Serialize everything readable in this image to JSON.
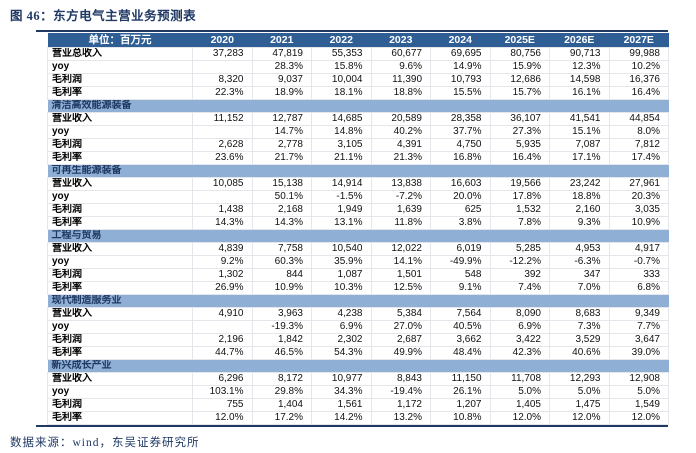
{
  "title": "图 46：东方电气主营业务预测表",
  "footer": "数据来源：wind，东吴证券研究所",
  "colors": {
    "navy": "#1F3864",
    "header_bg": "#2F5E94",
    "section_bg": "#8FAFD4",
    "grid": "#E3E6EA"
  },
  "table": {
    "unit_label": "单位：百万元",
    "years": [
      "2020",
      "2021",
      "2022",
      "2023",
      "2024",
      "2025E",
      "2026E",
      "2027E"
    ],
    "groups": [
      {
        "section": "",
        "rows": [
          {
            "label": "营业总收入",
            "values": [
              "37,283",
              "47,819",
              "55,353",
              "60,677",
              "69,695",
              "80,756",
              "90,713",
              "99,988"
            ]
          },
          {
            "label": "yoy",
            "values": [
              "",
              "28.3%",
              "15.8%",
              "9.6%",
              "14.9%",
              "15.9%",
              "12.3%",
              "10.2%"
            ]
          },
          {
            "label": "毛利润",
            "values": [
              "8,320",
              "9,037",
              "10,004",
              "11,390",
              "10,793",
              "12,686",
              "14,598",
              "16,376"
            ]
          },
          {
            "label": "毛利率",
            "values": [
              "22.3%",
              "18.9%",
              "18.1%",
              "18.8%",
              "15.5%",
              "15.7%",
              "16.1%",
              "16.4%"
            ]
          }
        ]
      },
      {
        "section": "清洁高效能源装备",
        "rows": [
          {
            "label": "营业收入",
            "values": [
              "11,152",
              "12,787",
              "14,685",
              "20,589",
              "28,358",
              "36,107",
              "41,541",
              "44,854"
            ]
          },
          {
            "label": "yoy",
            "values": [
              "",
              "14.7%",
              "14.8%",
              "40.2%",
              "37.7%",
              "27.3%",
              "15.1%",
              "8.0%"
            ]
          },
          {
            "label": "毛利润",
            "values": [
              "2,628",
              "2,778",
              "3,105",
              "4,391",
              "4,750",
              "5,935",
              "7,087",
              "7,812"
            ]
          },
          {
            "label": "毛利率",
            "values": [
              "23.6%",
              "21.7%",
              "21.1%",
              "21.3%",
              "16.8%",
              "16.4%",
              "17.1%",
              "17.4%"
            ]
          }
        ]
      },
      {
        "section": "可再生能源装备",
        "rows": [
          {
            "label": "营业收入",
            "values": [
              "10,085",
              "15,138",
              "14,914",
              "13,838",
              "16,603",
              "19,566",
              "23,242",
              "27,961"
            ]
          },
          {
            "label": "yoy",
            "values": [
              "",
              "50.1%",
              "-1.5%",
              "-7.2%",
              "20.0%",
              "17.8%",
              "18.8%",
              "20.3%"
            ]
          },
          {
            "label": "毛利润",
            "values": [
              "1,438",
              "2,168",
              "1,949",
              "1,639",
              "625",
              "1,532",
              "2,160",
              "3,035"
            ]
          },
          {
            "label": "毛利率",
            "values": [
              "14.3%",
              "14.3%",
              "13.1%",
              "11.8%",
              "3.8%",
              "7.8%",
              "9.3%",
              "10.9%"
            ]
          }
        ]
      },
      {
        "section": "工程与贸易",
        "rows": [
          {
            "label": "营业收入",
            "values": [
              "4,839",
              "7,758",
              "10,540",
              "12,022",
              "6,019",
              "5,285",
              "4,953",
              "4,917"
            ]
          },
          {
            "label": "yoy",
            "values": [
              "9.2%",
              "60.3%",
              "35.9%",
              "14.1%",
              "-49.9%",
              "-12.2%",
              "-6.3%",
              "-0.7%"
            ]
          },
          {
            "label": "毛利润",
            "values": [
              "1,302",
              "844",
              "1,087",
              "1,501",
              "548",
              "392",
              "347",
              "333"
            ]
          },
          {
            "label": "毛利率",
            "values": [
              "26.9%",
              "10.9%",
              "10.3%",
              "12.5%",
              "9.1%",
              "7.4%",
              "7.0%",
              "6.8%"
            ]
          }
        ]
      },
      {
        "section": "现代制造服务业",
        "rows": [
          {
            "label": "营业收入",
            "values": [
              "4,910",
              "3,963",
              "4,238",
              "5,384",
              "7,564",
              "8,090",
              "8,683",
              "9,349"
            ]
          },
          {
            "label": "yoy",
            "values": [
              "",
              "-19.3%",
              "6.9%",
              "27.0%",
              "40.5%",
              "6.9%",
              "7.3%",
              "7.7%"
            ]
          },
          {
            "label": "毛利润",
            "values": [
              "2,196",
              "1,842",
              "2,302",
              "2,687",
              "3,662",
              "3,422",
              "3,529",
              "3,647"
            ]
          },
          {
            "label": "毛利率",
            "values": [
              "44.7%",
              "46.5%",
              "54.3%",
              "49.9%",
              "48.4%",
              "42.3%",
              "40.6%",
              "39.0%"
            ]
          }
        ]
      },
      {
        "section": "新兴成长产业",
        "rows": [
          {
            "label": "营业收入",
            "values": [
              "6,296",
              "8,172",
              "10,977",
              "8,843",
              "11,150",
              "11,708",
              "12,293",
              "12,908"
            ]
          },
          {
            "label": "yoy",
            "values": [
              "103.1%",
              "29.8%",
              "34.3%",
              "-19.4%",
              "26.1%",
              "5.0%",
              "5.0%",
              "5.0%"
            ]
          },
          {
            "label": "毛利润",
            "values": [
              "755",
              "1,404",
              "1,561",
              "1,172",
              "1,207",
              "1,405",
              "1,475",
              "1,549"
            ]
          },
          {
            "label": "毛利率",
            "values": [
              "12.0%",
              "17.2%",
              "14.2%",
              "13.2%",
              "10.8%",
              "12.0%",
              "12.0%",
              "12.0%"
            ]
          }
        ]
      }
    ]
  }
}
